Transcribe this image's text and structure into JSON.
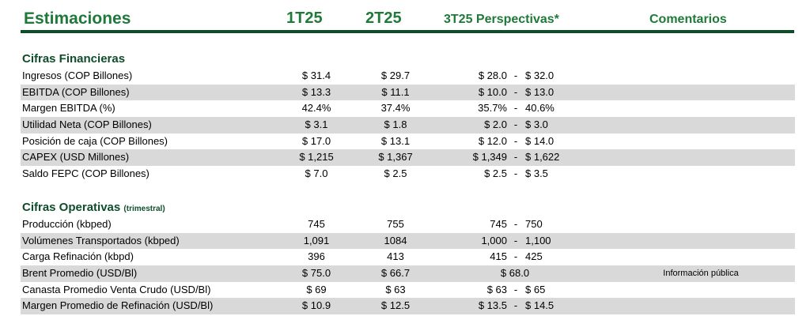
{
  "header": {
    "title": "Estimaciones",
    "col1": "1T25",
    "col2": "2T25",
    "col3": "3T25 Perspectivas*",
    "col4": "Comentarios"
  },
  "financial": {
    "title": "Cifras Financieras",
    "rows": [
      {
        "label": "Ingresos (COP Billones)",
        "t1": "$ 31.4",
        "t2": "$ 29.7",
        "lo": "$ 28.0",
        "dash": "-",
        "hi": "$ 32.0"
      },
      {
        "label": "EBITDA (COP Billones)",
        "t1": "$ 13.3",
        "t2": "$ 11.1",
        "lo": "$ 10.0",
        "dash": "-",
        "hi": "$ 13.0"
      },
      {
        "label": "Margen EBITDA (%)",
        "t1": "42.4%",
        "t2": "37.4%",
        "lo": "35.7%",
        "dash": "-",
        "hi": "40.6%"
      },
      {
        "label": "Utilidad Neta (COP Billones)",
        "t1": "$ 3.1",
        "t2": "$ 1.8",
        "lo": "$ 2.0",
        "dash": "-",
        "hi": "$ 3.0"
      },
      {
        "label": "Posición de caja (COP Billones)",
        "t1": "$ 17.0",
        "t2": "$ 13.1",
        "lo": "$ 12.0",
        "dash": "-",
        "hi": "$ 14.0"
      },
      {
        "label": "CAPEX (USD Millones)",
        "t1": "$ 1,215",
        "t2": "$ 1,367",
        "lo": "$ 1,349",
        "dash": "-",
        "hi": "$ 1,622"
      },
      {
        "label": "Saldo FEPC (COP Billones)",
        "t1": "$ 7.0",
        "t2": "$ 2.5",
        "lo": "$ 2.5",
        "dash": "-",
        "hi": "$ 3.5"
      }
    ]
  },
  "operational": {
    "title": "Cifras Operativas",
    "subtitle": "(trimestral)",
    "rows": [
      {
        "label": "Producción (kbped)",
        "t1": "745",
        "t2": "755",
        "lo": "745",
        "dash": "-",
        "hi": "750"
      },
      {
        "label": "Volúmenes Transportados (kbped)",
        "t1": "1,091",
        "t2": "1084",
        "lo": "1,000",
        "dash": "-",
        "hi": "1,100"
      },
      {
        "label": "Carga Refinación (kbpd)",
        "t1": "396",
        "t2": "413",
        "lo": "415",
        "dash": "-",
        "hi": "425"
      },
      {
        "label": "Brent Promedio (USD/Bl)",
        "t1": "$ 75.0",
        "t2": "$ 66.7",
        "single": "$ 68.0",
        "comment": "Información pública"
      },
      {
        "label": "Canasta Promedio Venta Crudo (USD/Bl)",
        "t1": "$ 69",
        "t2": "$ 63",
        "lo": "$ 63",
        "dash": "-",
        "hi": "$ 65"
      },
      {
        "label": "Margen Promedio de Refinación (USD/Bl)",
        "t1": "$ 10.9",
        "t2": "$ 12.5",
        "lo": "$ 13.5",
        "dash": "-",
        "hi": "$ 14.5"
      }
    ]
  }
}
